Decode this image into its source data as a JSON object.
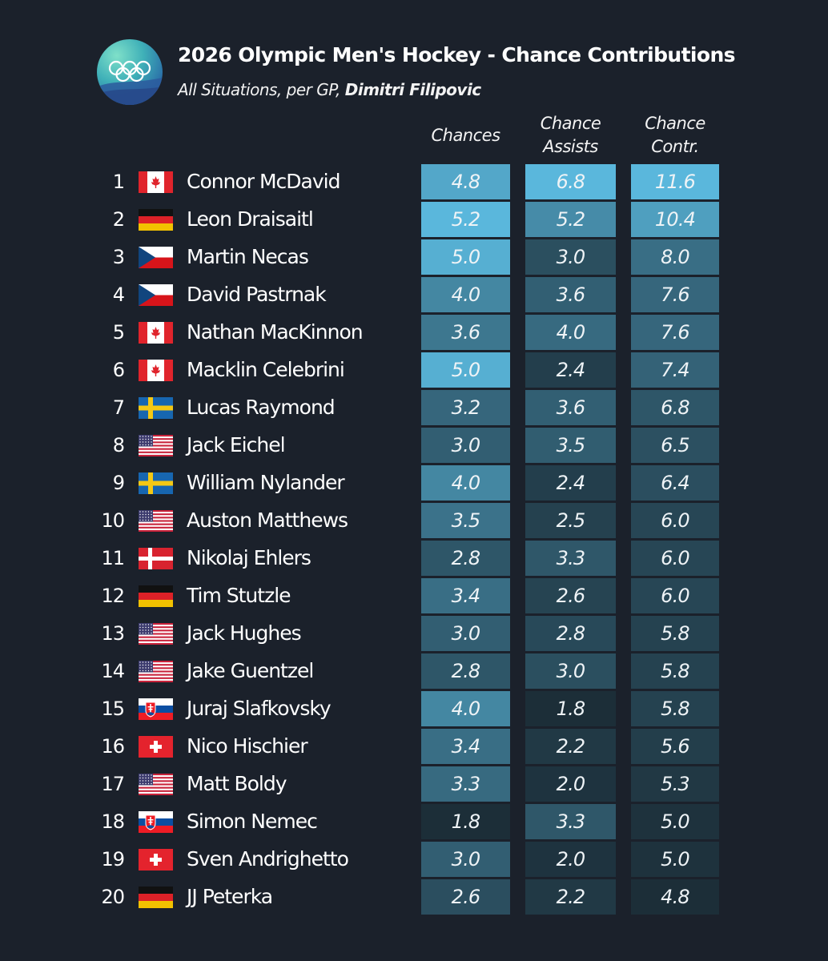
{
  "header": {
    "title": "2026 Olympic Men's Hockey - Chance Contributions",
    "subtitle_plain": "All Situations, per GP, ",
    "subtitle_author": "Dimitri Filipovic"
  },
  "chart_data": {
    "type": "table",
    "title": "2026 Olympic Men's Hockey - Chance Contributions",
    "subtitle": "All Situations, per GP, Dimitri Filipovic",
    "columns": [
      {
        "key": "chances",
        "label_lines": [
          "Chances"
        ]
      },
      {
        "key": "assists",
        "label_lines": [
          "Chance",
          "Assists"
        ]
      },
      {
        "key": "contr",
        "label_lines": [
          "Chance",
          "Contr."
        ]
      }
    ],
    "rows": [
      {
        "rank": "1",
        "country": "CAN",
        "player": "Connor McDavid",
        "chances": "4.8",
        "assists": "6.8",
        "contr": "11.6"
      },
      {
        "rank": "2",
        "country": "GER",
        "player": "Leon Draisaitl",
        "chances": "5.2",
        "assists": "5.2",
        "contr": "10.4"
      },
      {
        "rank": "3",
        "country": "CZE",
        "player": "Martin Necas",
        "chances": "5.0",
        "assists": "3.0",
        "contr": "8.0"
      },
      {
        "rank": "4",
        "country": "CZE",
        "player": "David Pastrnak",
        "chances": "4.0",
        "assists": "3.6",
        "contr": "7.6"
      },
      {
        "rank": "5",
        "country": "CAN",
        "player": "Nathan MacKinnon",
        "chances": "3.6",
        "assists": "4.0",
        "contr": "7.6"
      },
      {
        "rank": "6",
        "country": "CAN",
        "player": "Macklin Celebrini",
        "chances": "5.0",
        "assists": "2.4",
        "contr": "7.4"
      },
      {
        "rank": "7",
        "country": "SWE",
        "player": "Lucas Raymond",
        "chances": "3.2",
        "assists": "3.6",
        "contr": "6.8"
      },
      {
        "rank": "8",
        "country": "USA",
        "player": "Jack Eichel",
        "chances": "3.0",
        "assists": "3.5",
        "contr": "6.5"
      },
      {
        "rank": "9",
        "country": "SWE",
        "player": "William Nylander",
        "chances": "4.0",
        "assists": "2.4",
        "contr": "6.4"
      },
      {
        "rank": "10",
        "country": "USA",
        "player": "Auston Matthews",
        "chances": "3.5",
        "assists": "2.5",
        "contr": "6.0"
      },
      {
        "rank": "11",
        "country": "DEN",
        "player": "Nikolaj Ehlers",
        "chances": "2.8",
        "assists": "3.3",
        "contr": "6.0"
      },
      {
        "rank": "12",
        "country": "GER",
        "player": "Tim Stutzle",
        "chances": "3.4",
        "assists": "2.6",
        "contr": "6.0"
      },
      {
        "rank": "13",
        "country": "USA",
        "player": "Jack Hughes",
        "chances": "3.0",
        "assists": "2.8",
        "contr": "5.8"
      },
      {
        "rank": "14",
        "country": "USA",
        "player": "Jake Guentzel",
        "chances": "2.8",
        "assists": "3.0",
        "contr": "5.8"
      },
      {
        "rank": "15",
        "country": "SVK",
        "player": "Juraj Slafkovsky",
        "chances": "4.0",
        "assists": "1.8",
        "contr": "5.8"
      },
      {
        "rank": "16",
        "country": "SUI",
        "player": "Nico Hischier",
        "chances": "3.4",
        "assists": "2.2",
        "contr": "5.6"
      },
      {
        "rank": "17",
        "country": "USA",
        "player": "Matt Boldy",
        "chances": "3.3",
        "assists": "2.0",
        "contr": "5.3"
      },
      {
        "rank": "18",
        "country": "SVK",
        "player": "Simon Nemec",
        "chances": "1.8",
        "assists": "3.3",
        "contr": "5.0"
      },
      {
        "rank": "19",
        "country": "SUI",
        "player": "Sven Andrighetto",
        "chances": "3.0",
        "assists": "2.0",
        "contr": "5.0"
      },
      {
        "rank": "20",
        "country": "GER",
        "player": "JJ Peterka",
        "chances": "2.6",
        "assists": "2.2",
        "contr": "4.8"
      }
    ],
    "color_scale": {
      "low": "#1c2e38",
      "high": "#5ab7dc"
    }
  }
}
